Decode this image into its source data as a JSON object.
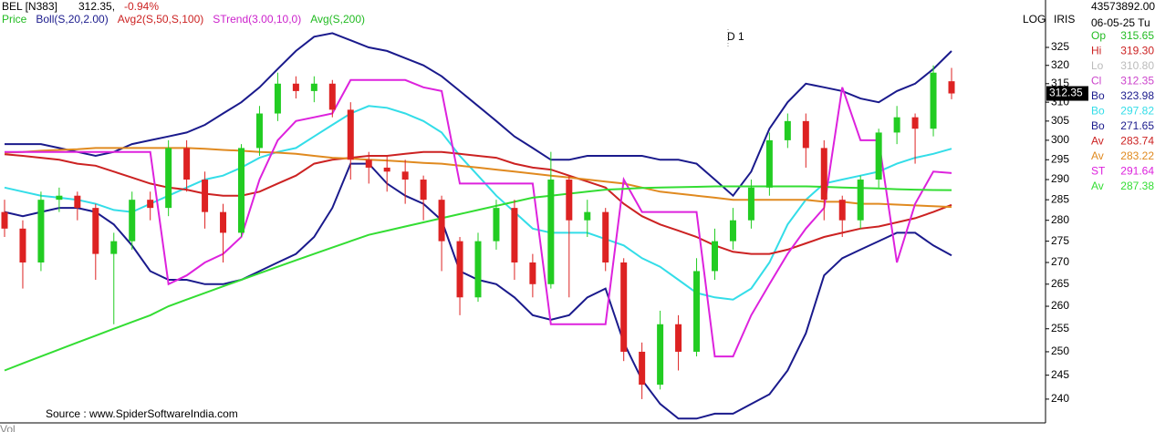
{
  "header": {
    "symbol": "BEL [N383]",
    "price": "312.35,",
    "change": "-0.94%",
    "indicators": [
      {
        "text": "Price",
        "color": "#22bb22"
      },
      {
        "text": "Boll(S,20,2.00)",
        "color": "#1a1a8c"
      },
      {
        "text": "Avg2(S,50,S,100)",
        "color": "#cc2222"
      },
      {
        "text": "STrend(3.00,10,0)",
        "color": "#cc22cc"
      },
      {
        "text": "Avg(S,200)",
        "color": "#22bb22"
      }
    ],
    "period": "D 1",
    "scale_mode": "LOG",
    "tool": "IRIS",
    "source": "Source : www.SpiderSoftwareIndia.com",
    "volume": "Vol"
  },
  "panel": {
    "volume": "43573892.00",
    "date": "06-05-25 Tu",
    "quote": [
      {
        "label": "Op",
        "value": "315.65",
        "color": "#22bb22"
      },
      {
        "label": "Hi",
        "value": "319.30",
        "color": "#cc2222"
      },
      {
        "label": "Lo",
        "value": "310.80",
        "color": "#bbbbbb"
      },
      {
        "label": "Cl",
        "value": "312.35",
        "color": "#cc44cc"
      }
    ]
  },
  "chart_data": {
    "type": "candlestick",
    "log_scale": true,
    "ylim": [
      235.5,
      333.8
    ],
    "yticks": [
      240,
      245,
      250,
      255,
      260,
      265,
      270,
      275,
      280,
      285,
      290,
      295,
      300,
      305,
      310,
      315,
      320,
      325
    ],
    "up_color": "#22cc22",
    "down_color": "#dd2222",
    "open": [
      282,
      278,
      270,
      285,
      286,
      283,
      272,
      275,
      285,
      283,
      298,
      290,
      282,
      277,
      298,
      307,
      315,
      313,
      315,
      308,
      295,
      293,
      292,
      290,
      285,
      275,
      262,
      275,
      283,
      270,
      265,
      290,
      280,
      282,
      270,
      250,
      243,
      256,
      250,
      268,
      275,
      280,
      288,
      300,
      305,
      298,
      285,
      280,
      290,
      302,
      306,
      303,
      315.65
    ],
    "high": [
      285,
      280,
      287,
      288,
      287,
      284,
      277,
      287,
      287,
      300,
      300,
      292,
      284,
      299,
      309,
      318,
      317,
      317,
      316,
      310,
      297,
      296,
      295,
      291,
      286,
      276,
      277,
      285,
      285,
      272,
      297,
      291,
      285,
      283,
      271,
      252,
      259,
      258,
      271,
      278,
      283,
      290,
      302,
      307,
      307,
      300,
      286,
      291,
      303,
      309,
      307,
      320,
      319.3
    ],
    "low": [
      276,
      264,
      268,
      282,
      280,
      266,
      256,
      273,
      280,
      281,
      287,
      278,
      270,
      276,
      296,
      305,
      311,
      310,
      306,
      290,
      289,
      287,
      284,
      280,
      268,
      258,
      261,
      273,
      266,
      262,
      264,
      262,
      276,
      268,
      248,
      240,
      242,
      246,
      249,
      266,
      273,
      278,
      286,
      298,
      293,
      280,
      276,
      278,
      288,
      299,
      294,
      301,
      310.8
    ],
    "close": [
      278,
      270,
      285,
      286,
      283,
      272,
      275,
      285,
      283,
      298,
      290,
      282,
      277,
      298,
      307,
      315,
      313,
      315,
      308,
      295,
      293,
      292,
      290,
      285,
      275,
      262,
      275,
      283,
      270,
      265,
      290,
      280,
      282,
      270,
      250,
      243,
      256,
      250,
      268,
      275,
      280,
      288,
      300,
      305,
      298,
      285,
      280,
      290,
      302,
      306,
      303,
      318,
      312.35
    ],
    "series": [
      {
        "name": "Bo",
        "color": "#1a1a8c",
        "values": [
          299,
          299,
          299,
          298,
          297,
          296,
          297,
          299,
          300,
          301,
          302,
          304,
          307,
          310,
          314,
          319,
          324,
          328,
          329,
          327,
          325,
          324,
          322,
          320,
          317,
          313,
          309,
          305,
          301,
          298,
          295,
          295,
          296,
          296,
          296,
          296,
          295,
          295,
          294,
          290,
          286,
          292,
          303,
          310,
          315,
          314,
          313,
          311,
          310,
          313,
          315,
          319,
          323.98
        ]
      },
      {
        "name": "Bo",
        "color": "#33dde8",
        "values": [
          288,
          287,
          286,
          285.5,
          285,
          284,
          282.5,
          282,
          284,
          286,
          288,
          290,
          291,
          293,
          295.5,
          297,
          298,
          301,
          304,
          307,
          309,
          308.5,
          307,
          305,
          302,
          296,
          291,
          286,
          282,
          278,
          277,
          277,
          277,
          275.5,
          274,
          271,
          269,
          266,
          263,
          262,
          261.5,
          264,
          270,
          279,
          285,
          289,
          290,
          291,
          292,
          294,
          295.5,
          296.5,
          297.82
        ]
      },
      {
        "name": "Bo",
        "color": "#1a1a8c",
        "values": [
          282,
          281,
          282,
          283,
          283,
          282,
          279,
          274,
          268,
          266,
          266,
          265,
          265,
          266,
          268,
          270,
          272,
          276,
          283,
          294,
          294,
          289,
          286,
          284,
          280,
          268,
          266,
          265,
          262,
          258,
          257,
          258,
          262,
          264,
          252,
          244,
          239,
          236,
          236,
          237,
          237,
          239,
          241,
          246,
          254,
          267,
          271,
          273,
          275,
          277,
          277,
          274,
          271.65
        ]
      },
      {
        "name": "Av",
        "color": "#cc2222",
        "values": [
          296.4,
          296,
          295.5,
          295,
          294,
          293.5,
          292,
          290.5,
          289,
          288,
          287.5,
          286.5,
          286,
          286,
          287,
          289,
          291,
          294,
          295,
          295.5,
          296,
          296,
          296.5,
          297,
          297,
          296.5,
          296,
          295.5,
          294,
          293,
          292.5,
          291,
          289.5,
          288,
          284,
          281,
          279,
          277.5,
          276,
          274,
          272.5,
          272,
          272,
          273,
          274.5,
          276,
          277,
          278,
          278.5,
          279.5,
          280.5,
          282,
          283.74
        ]
      },
      {
        "name": "Av",
        "color": "#e08a20",
        "values": [
          296.8,
          297,
          297.3,
          297.5,
          297.7,
          298,
          298,
          298,
          298,
          298,
          298,
          297.8,
          297.5,
          297.3,
          297,
          296.8,
          296.5,
          296,
          295.5,
          295.3,
          295,
          294.8,
          294.5,
          294.2,
          294,
          293.5,
          293,
          292.5,
          292,
          291.5,
          291,
          290.5,
          290,
          289.5,
          289,
          288,
          287,
          286.5,
          286,
          285.5,
          285,
          285,
          285,
          285,
          285,
          284.5,
          284.5,
          284,
          284,
          283.8,
          283.6,
          283.4,
          283.22
        ]
      },
      {
        "name": "ST",
        "color": "#dd22dd",
        "values": [
          297,
          297,
          297,
          297,
          297,
          297,
          297,
          297,
          297,
          265,
          267,
          270,
          272,
          276,
          290,
          300,
          305,
          306,
          307,
          316,
          316,
          316,
          316,
          314,
          313,
          289,
          289,
          289,
          289,
          289,
          256,
          256,
          256,
          256,
          290,
          282,
          282,
          282,
          282,
          249,
          249,
          258,
          265,
          272,
          278,
          283,
          314,
          300,
          300,
          270,
          284,
          292,
          291.64
        ]
      },
      {
        "name": "Av",
        "color": "#33dd33",
        "values": [
          246,
          247.5,
          249,
          250.5,
          252,
          253.5,
          255,
          256.5,
          258,
          260,
          261.5,
          263,
          264.5,
          266,
          267.5,
          269,
          270.5,
          272,
          273.5,
          275,
          276.5,
          277.5,
          278.5,
          279.5,
          280.5,
          281.5,
          282.5,
          283.5,
          284.5,
          285.5,
          286,
          286.5,
          287,
          287.5,
          287.7,
          287.9,
          288,
          288.1,
          288.2,
          288.3,
          288.3,
          288.3,
          288.3,
          288.3,
          288.3,
          288.2,
          288,
          287.9,
          287.8,
          287.6,
          287.5,
          287.4,
          287.38
        ]
      }
    ]
  }
}
